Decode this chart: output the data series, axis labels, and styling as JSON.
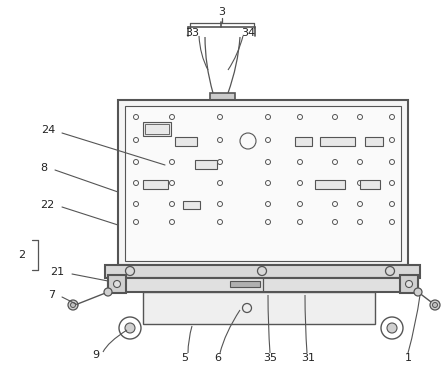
{
  "bg_color": "#ffffff",
  "line_color": "#555555",
  "figsize": [
    4.43,
    3.68
  ],
  "dpi": 100,
  "panel_bg": "#f5f5f5",
  "panel_inner": "#fafafa",
  "base_gray": "#d0d0d0",
  "handle_gray": "#cccccc"
}
